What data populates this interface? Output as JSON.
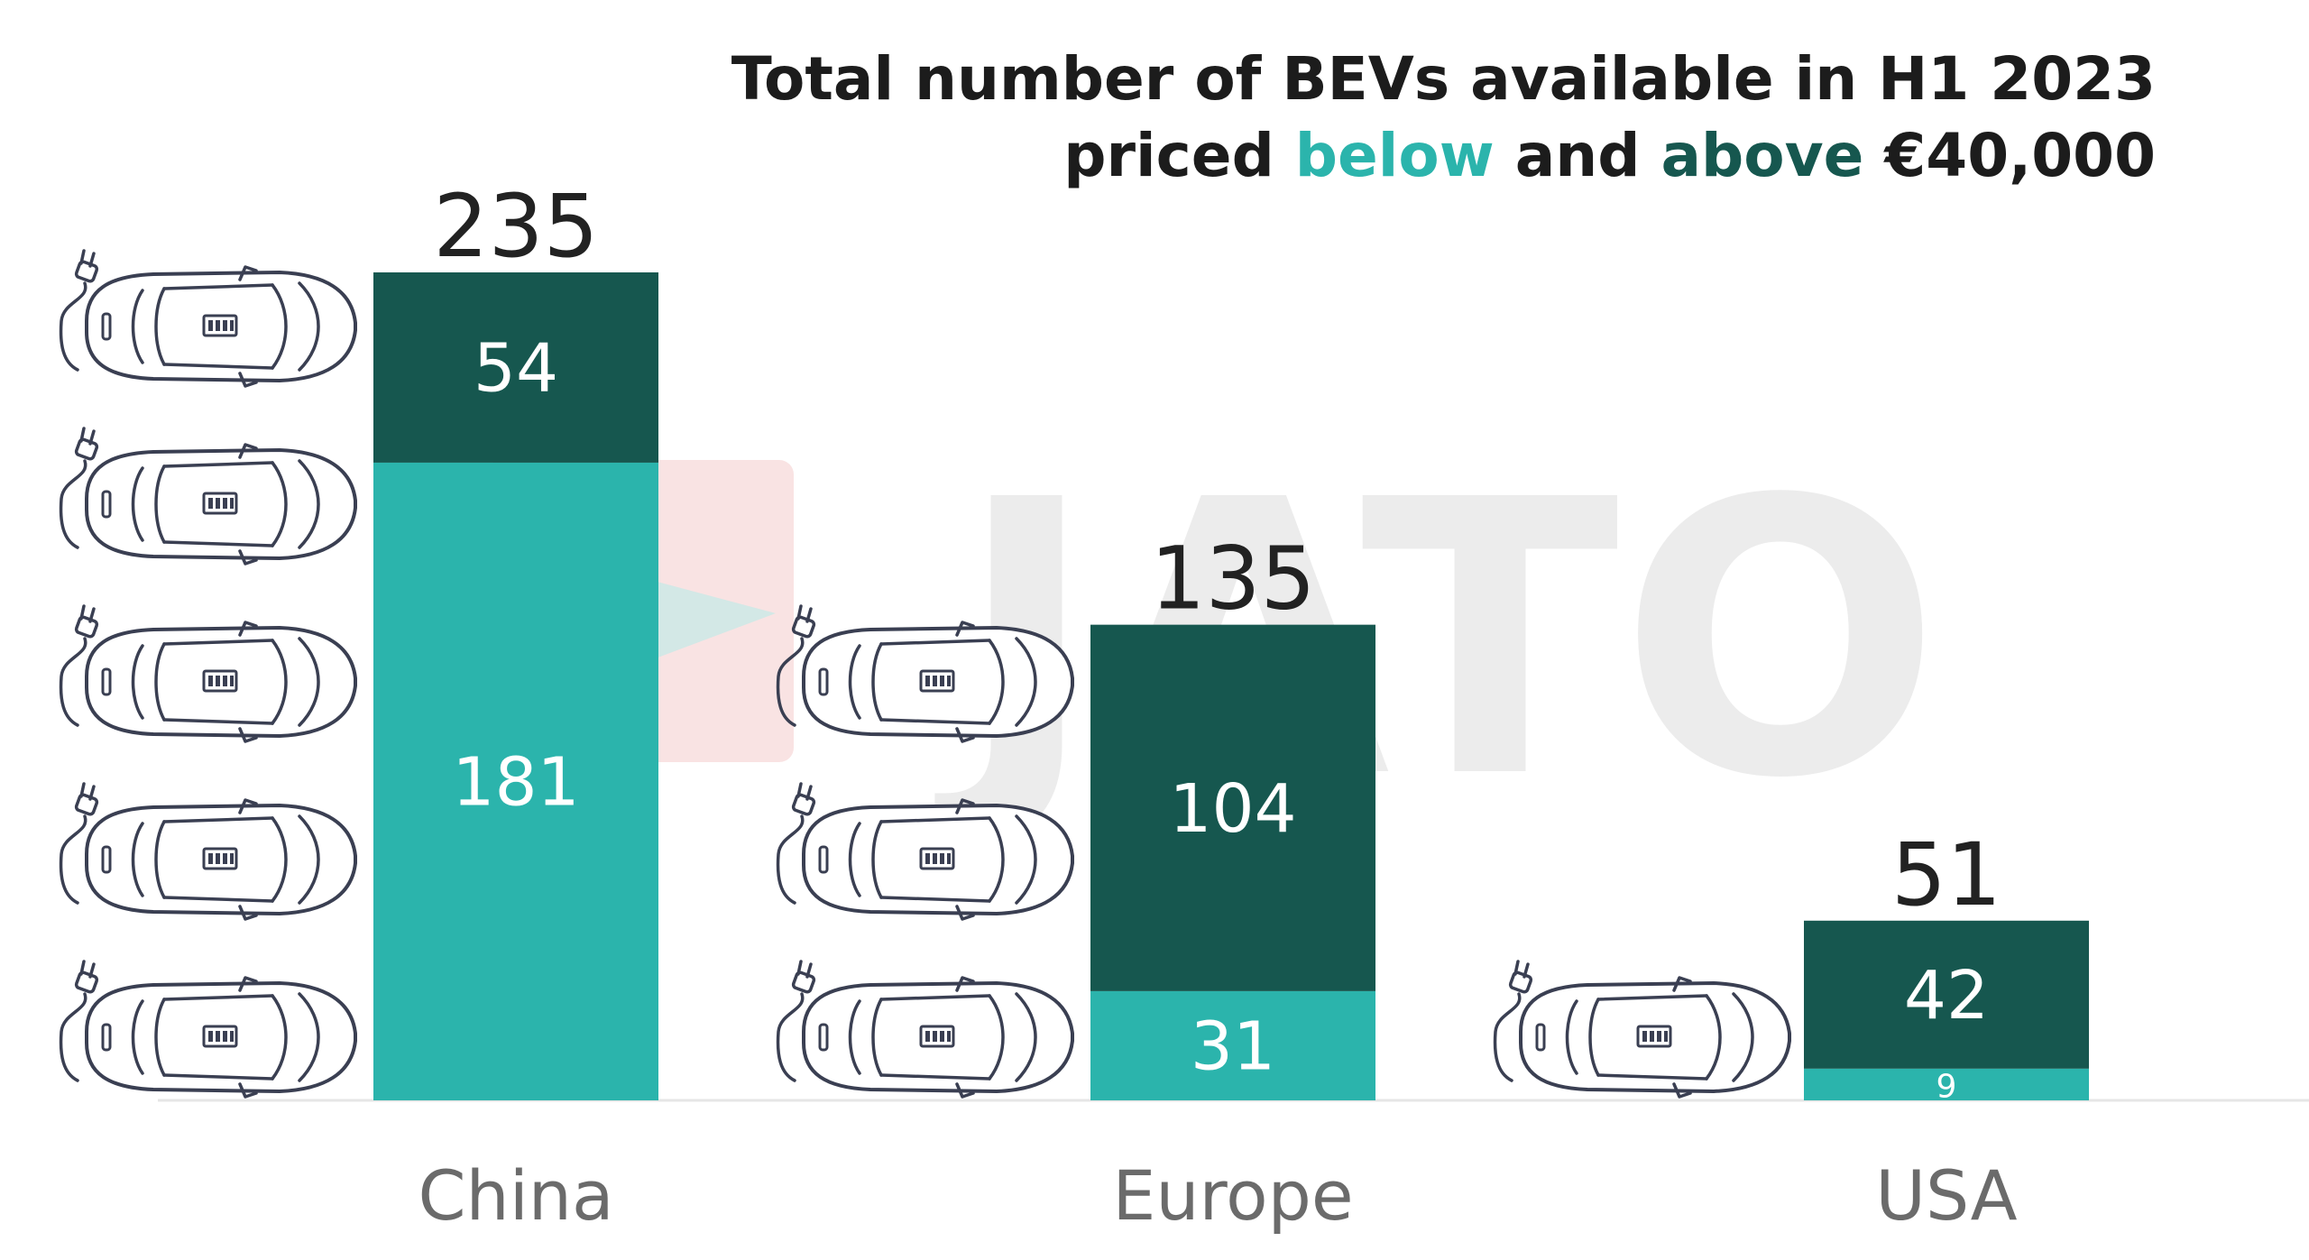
{
  "title": {
    "line1": "Total number of BEVs available in H1 2023",
    "line2_pre": "priced ",
    "line2_below": "below",
    "line2_mid": " and ",
    "line2_above": "above",
    "line2_post": " €40,000"
  },
  "watermark": "JATO",
  "colors": {
    "below": "#2bb4ac",
    "above": "#16574f",
    "baseline": "#e6e6e6",
    "watermark_gray": "#e9e9e9",
    "watermark_red": "#f6d7d7"
  },
  "icons": [
    "ev-car-icon",
    "plug-icon"
  ],
  "chart_data": {
    "type": "bar",
    "stacked": true,
    "categories": [
      "China",
      "Europe",
      "USA"
    ],
    "series": [
      {
        "name": "below",
        "color": "#2bb4ac",
        "values": [
          181,
          31,
          9
        ]
      },
      {
        "name": "above",
        "color": "#16574f",
        "values": [
          54,
          104,
          42
        ]
      }
    ],
    "totals": [
      235,
      135,
      51
    ],
    "car_icon_counts": [
      5,
      3,
      1
    ],
    "title": "Total number of BEVs available in H1 2023 priced below and above €40,000",
    "xlabel": "",
    "ylabel": "",
    "ylim": [
      0,
      235
    ],
    "grid": false,
    "legend": "in title"
  }
}
